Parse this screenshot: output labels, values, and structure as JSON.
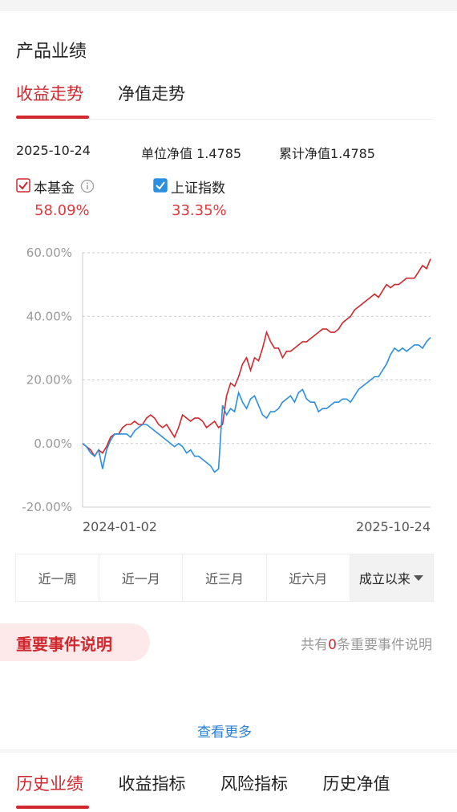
{
  "section_title": "产品业绩",
  "tabs": [
    {
      "label": "收益走势",
      "active": true
    },
    {
      "label": "净值走势",
      "active": false
    }
  ],
  "info": {
    "date": "2025-10-24",
    "unit_nav": "单位净值 1.4785",
    "total_nav": "累计净值1.4785"
  },
  "returns": [
    "58.09%",
    "33.35%"
  ],
  "chart_data": {
    "type": "line",
    "categories": [
      "2024-01-02",
      null,
      null,
      null,
      null,
      null,
      null,
      null,
      null,
      null,
      null,
      null,
      null,
      null,
      null,
      null,
      null,
      null,
      null,
      null,
      null,
      null,
      null,
      null,
      null,
      null,
      null,
      null,
      null,
      null,
      null,
      null,
      null,
      null,
      null,
      null,
      null,
      null,
      null,
      null,
      null,
      null,
      null,
      null,
      null,
      null,
      null,
      null,
      null,
      null,
      null,
      null,
      null,
      null,
      null,
      null,
      null,
      null,
      null,
      null,
      null,
      null,
      null,
      null,
      null,
      null,
      null,
      null,
      null,
      null,
      null,
      null,
      null,
      null,
      null,
      null,
      null,
      null,
      null,
      null,
      null,
      null,
      null,
      null,
      null,
      null,
      null,
      "2025-10-24"
    ],
    "series": [
      {
        "name": "本基金",
        "color": "#d0282e",
        "checked": true,
        "values": [
          0,
          -1,
          -2,
          -4,
          -2,
          -3,
          -1,
          2,
          3,
          3,
          5,
          6,
          6,
          7,
          6,
          6,
          8,
          9,
          8,
          6,
          5,
          6,
          4,
          2,
          5,
          9,
          8,
          7,
          8,
          8,
          7,
          5,
          6,
          7,
          5,
          6,
          15,
          19,
          18,
          21,
          25,
          27,
          23,
          27,
          26,
          30,
          35,
          32,
          30,
          30,
          27,
          29,
          29,
          30,
          31,
          32,
          32,
          33,
          34,
          35,
          36,
          36,
          35,
          35,
          36,
          38,
          39,
          40,
          42,
          43,
          44,
          45,
          46,
          47,
          46,
          48,
          50,
          49,
          50,
          50,
          51,
          52,
          52,
          52,
          54,
          56,
          55,
          58.09
        ]
      },
      {
        "name": "上证指数",
        "color": "#2b8fe0",
        "checked": true,
        "values": [
          0,
          -1,
          -3,
          -4,
          -2,
          -8,
          -2,
          1,
          3,
          3,
          3,
          3,
          2,
          4,
          5,
          6,
          6,
          5,
          4,
          3,
          2,
          1,
          0,
          -1,
          0,
          -1,
          -3,
          -2,
          -4,
          -4,
          -5,
          -6,
          -7,
          -9,
          -8,
          12,
          9,
          11,
          10,
          16,
          13,
          11,
          14,
          15,
          12,
          9,
          8,
          10,
          10,
          11,
          13,
          14,
          15,
          13,
          16,
          17,
          14,
          13,
          13,
          10,
          11,
          11,
          12,
          13,
          13,
          14,
          14,
          13,
          15,
          17,
          18,
          19,
          20,
          21,
          21,
          23,
          25,
          28,
          30,
          29,
          30,
          29,
          30,
          31,
          31,
          30,
          32,
          33.35
        ]
      }
    ],
    "ylim": [
      -20,
      60
    ],
    "yticks": [
      {
        "value": -20,
        "label": "-20.00%"
      },
      {
        "value": 0,
        "label": "0.00%"
      },
      {
        "value": 20,
        "label": "20.00%"
      },
      {
        "value": 40,
        "label": "40.00%"
      },
      {
        "value": 60,
        "label": "60.00%"
      }
    ],
    "grid": true
  },
  "periods": [
    "近一周",
    "近一月",
    "近三月",
    "近六月",
    "成立以来"
  ],
  "active_period": 4,
  "events": {
    "title": "重要事件说明",
    "prefix": "共有",
    "count": 0,
    "suffix": "条重要事件说明"
  },
  "more": "查看更多",
  "bottom_tabs": [
    "历史业绩",
    "收益指标",
    "风险指标",
    "历史净值"
  ],
  "active_bottom_tab": 0
}
